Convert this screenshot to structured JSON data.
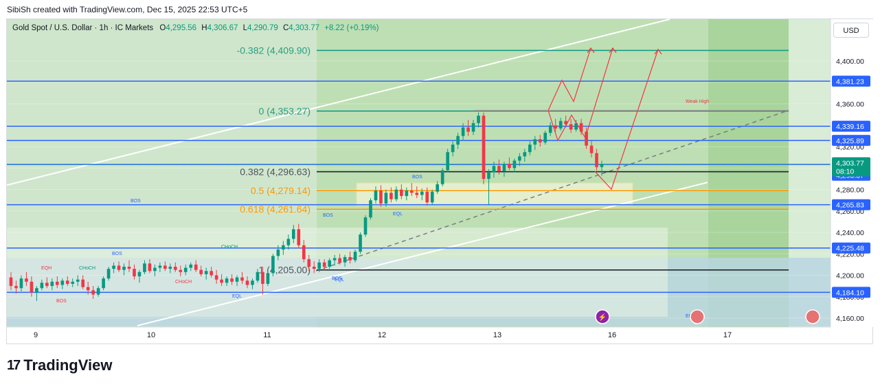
{
  "header": {
    "attribution": "SibiSh created with TradingView.com, Dec 15, 2025 22:53 UTC+5"
  },
  "legend": {
    "symbol": "Gold Spot / U.S. Dollar · 1h · IC Markets",
    "open_label": "O",
    "open": "4,295.56",
    "high_label": "H",
    "high": "4,306.67",
    "low_label": "L",
    "low": "4,290.79",
    "close_label": "C",
    "close": "4,303.77",
    "change": "+8.22 (+0.19%)"
  },
  "currency_button": "USD",
  "branding": {
    "logo_mark": "17",
    "name": "TradingView"
  },
  "colors": {
    "up": "#089981",
    "down": "#f23645",
    "blue_line": "#2962ff",
    "fib_green": "#26a69a",
    "fib_orange": "#ff9800",
    "projection": "#f23645"
  },
  "chart_data": {
    "type": "candlestick",
    "ylim": [
      4150,
      4425
    ],
    "y_ticks": [
      4160,
      4180,
      4200,
      4220,
      4240,
      4260,
      4280,
      4300,
      4320,
      4340,
      4360,
      4380,
      4400
    ],
    "y_tick_labels": [
      "4,160.00",
      "4,180.00",
      "4,200.00",
      "4,220.00",
      "4,240.00",
      "4,260.00",
      "4,280.00",
      "4,300.00",
      "4,320.00",
      "4,340.00",
      "4,360.00",
      "4,380.00",
      "4,400.00"
    ],
    "x_ticks": [
      9,
      10,
      11,
      12,
      13,
      16,
      17
    ],
    "x_tick_labels": [
      "9",
      "10",
      "11",
      "12",
      "13",
      "16",
      "17"
    ],
    "price_labels": [
      {
        "text": "4,381.23",
        "value": 4381.23
      },
      {
        "text": "4,339.16",
        "value": 4339.16
      },
      {
        "text": "4,325.89",
        "value": 4325.89
      },
      {
        "text": "4,303.55",
        "value": 4303.55
      },
      {
        "text": "4,293.37",
        "value": 4293.37
      },
      {
        "text": "4,265.83",
        "value": 4265.83
      },
      {
        "text": "4,225.48",
        "value": 4225.48
      },
      {
        "text": "4,184.10",
        "value": 4184.1
      }
    ],
    "last_price": {
      "text": "4,303.77",
      "countdown": "08:10",
      "value": 4303.77
    },
    "horizontal_levels": [
      4381.23,
      4339.16,
      4325.89,
      4303.55,
      4265.83,
      4225.48,
      4184.1
    ],
    "fib_levels": [
      {
        "label": "-0.382 (4,409.90)",
        "value": 4409.9
      },
      {
        "label": "0 (4,353.27)",
        "value": 4353.27
      },
      {
        "label": "0.382 (4,296.63)",
        "value": 4296.63
      },
      {
        "label": "0.5 (4,279.14)",
        "value": 4279.14
      },
      {
        "label": "0.618 (4,261.64)",
        "value": 4261.64
      }
    ],
    "fib_base_label": "1 (4,205.00)",
    "structure_labels": [
      "EQH",
      "CHoCH",
      "BOS",
      "BOS",
      "CHoCH",
      "BOS",
      "BOS",
      "CHoCH",
      "EQL",
      "BOS",
      "EQL",
      "BOS",
      "EQL",
      "EQL",
      "Weak High"
    ],
    "ohlc": [
      [
        4198,
        4203,
        4186,
        4190
      ],
      [
        4190,
        4195,
        4183,
        4188
      ],
      [
        4188,
        4200,
        4185,
        4197
      ],
      [
        4197,
        4203,
        4190,
        4194
      ],
      [
        4194,
        4199,
        4180,
        4184
      ],
      [
        4184,
        4190,
        4176,
        4188
      ],
      [
        4188,
        4196,
        4186,
        4193
      ],
      [
        4193,
        4198,
        4188,
        4190
      ],
      [
        4190,
        4197,
        4186,
        4194
      ],
      [
        4194,
        4199,
        4188,
        4191
      ],
      [
        4191,
        4197,
        4187,
        4195
      ],
      [
        4195,
        4199,
        4190,
        4192
      ],
      [
        4192,
        4197,
        4189,
        4194
      ],
      [
        4194,
        4200,
        4190,
        4196
      ],
      [
        4196,
        4200,
        4187,
        4189
      ],
      [
        4189,
        4194,
        4182,
        4186
      ],
      [
        4186,
        4190,
        4178,
        4182
      ],
      [
        4182,
        4190,
        4180,
        4188
      ],
      [
        4188,
        4199,
        4186,
        4197
      ],
      [
        4197,
        4208,
        4195,
        4206
      ],
      [
        4206,
        4212,
        4202,
        4209
      ],
      [
        4209,
        4213,
        4203,
        4205
      ],
      [
        4205,
        4211,
        4200,
        4208
      ],
      [
        4208,
        4214,
        4203,
        4206
      ],
      [
        4206,
        4210,
        4196,
        4199
      ],
      [
        4199,
        4205,
        4193,
        4203
      ],
      [
        4203,
        4214,
        4201,
        4211
      ],
      [
        4211,
        4215,
        4202,
        4204
      ],
      [
        4204,
        4210,
        4199,
        4207
      ],
      [
        4207,
        4212,
        4203,
        4209
      ],
      [
        4209,
        4213,
        4204,
        4206
      ],
      [
        4206,
        4211,
        4202,
        4208
      ],
      [
        4208,
        4212,
        4203,
        4205
      ],
      [
        4205,
        4209,
        4199,
        4203
      ],
      [
        4203,
        4210,
        4200,
        4207
      ],
      [
        4207,
        4212,
        4204,
        4210
      ],
      [
        4210,
        4214,
        4203,
        4205
      ],
      [
        4205,
        4209,
        4199,
        4201
      ],
      [
        4201,
        4207,
        4196,
        4204
      ],
      [
        4204,
        4208,
        4198,
        4200
      ],
      [
        4200,
        4205,
        4192,
        4196
      ],
      [
        4196,
        4201,
        4190,
        4193
      ],
      [
        4193,
        4199,
        4190,
        4197
      ],
      [
        4197,
        4201,
        4191,
        4194
      ],
      [
        4194,
        4200,
        4190,
        4198
      ],
      [
        4198,
        4203,
        4192,
        4195
      ],
      [
        4195,
        4199,
        4188,
        4191
      ],
      [
        4191,
        4197,
        4187,
        4195
      ],
      [
        4195,
        4206,
        4193,
        4203
      ],
      [
        4203,
        4208,
        4182,
        4192
      ],
      [
        4192,
        4205,
        4190,
        4202
      ],
      [
        4202,
        4220,
        4199,
        4218
      ],
      [
        4218,
        4228,
        4214,
        4224
      ],
      [
        4224,
        4232,
        4219,
        4228
      ],
      [
        4228,
        4238,
        4224,
        4234
      ],
      [
        4234,
        4247,
        4230,
        4243
      ],
      [
        4243,
        4248,
        4225,
        4228
      ],
      [
        4228,
        4233,
        4212,
        4215
      ],
      [
        4215,
        4219,
        4204,
        4208
      ],
      [
        4208,
        4213,
        4202,
        4206
      ],
      [
        4206,
        4215,
        4203,
        4212
      ],
      [
        4212,
        4215,
        4205,
        4208
      ],
      [
        4208,
        4216,
        4206,
        4214
      ],
      [
        4214,
        4219,
        4209,
        4216
      ],
      [
        4216,
        4220,
        4210,
        4212
      ],
      [
        4212,
        4219,
        4208,
        4217
      ],
      [
        4217,
        4222,
        4211,
        4214
      ],
      [
        4214,
        4224,
        4212,
        4222
      ],
      [
        4222,
        4240,
        4220,
        4238
      ],
      [
        4238,
        4256,
        4236,
        4254
      ],
      [
        4254,
        4272,
        4252,
        4270
      ],
      [
        4270,
        4283,
        4267,
        4279
      ],
      [
        4279,
        4284,
        4264,
        4267
      ],
      [
        4267,
        4280,
        4264,
        4277
      ],
      [
        4277,
        4282,
        4268,
        4271
      ],
      [
        4271,
        4283,
        4269,
        4280
      ],
      [
        4280,
        4285,
        4271,
        4274
      ],
      [
        4274,
        4282,
        4270,
        4279
      ],
      [
        4279,
        4286,
        4274,
        4277
      ],
      [
        4277,
        4283,
        4272,
        4275
      ],
      [
        4275,
        4281,
        4270,
        4278
      ],
      [
        4278,
        4282,
        4265,
        4268
      ],
      [
        4268,
        4280,
        4266,
        4278
      ],
      [
        4278,
        4288,
        4276,
        4285
      ],
      [
        4285,
        4300,
        4283,
        4298
      ],
      [
        4298,
        4318,
        4296,
        4315
      ],
      [
        4315,
        4325,
        4311,
        4322
      ],
      [
        4322,
        4333,
        4318,
        4330
      ],
      [
        4330,
        4342,
        4326,
        4338
      ],
      [
        4338,
        4345,
        4330,
        4334
      ],
      [
        4334,
        4345,
        4331,
        4342
      ],
      [
        4342,
        4352,
        4338,
        4349
      ],
      [
        4349,
        4352,
        4285,
        4290
      ],
      [
        4290,
        4299,
        4266,
        4296
      ],
      [
        4296,
        4306,
        4291,
        4302
      ],
      [
        4302,
        4308,
        4294,
        4297
      ],
      [
        4297,
        4306,
        4292,
        4304
      ],
      [
        4304,
        4310,
        4298,
        4300
      ],
      [
        4300,
        4309,
        4296,
        4307
      ],
      [
        4307,
        4314,
        4302,
        4311
      ],
      [
        4311,
        4318,
        4306,
        4315
      ],
      [
        4315,
        4325,
        4312,
        4322
      ],
      [
        4322,
        4330,
        4317,
        4327
      ],
      [
        4327,
        4331,
        4320,
        4324
      ],
      [
        4324,
        4335,
        4322,
        4333
      ],
      [
        4333,
        4343,
        4330,
        4340
      ],
      [
        4340,
        4346,
        4334,
        4337
      ],
      [
        4337,
        4347,
        4335,
        4344
      ],
      [
        4344,
        4349,
        4338,
        4341
      ],
      [
        4341,
        4346,
        4333,
        4336
      ],
      [
        4336,
        4345,
        4334,
        4342
      ],
      [
        4342,
        4346,
        4331,
        4334
      ],
      [
        4334,
        4338,
        4318,
        4321
      ],
      [
        4321,
        4326,
        4310,
        4314
      ],
      [
        4314,
        4318,
        4298,
        4301
      ],
      [
        4301,
        4307,
        4293,
        4304
      ]
    ],
    "projection_path": [
      [
        4352,
        4363,
        4348,
        4370,
        4335,
        4356,
        4407,
        4300,
        4305,
        4407
      ],
      [
        4352,
        4368,
        4340,
        4356,
        4290,
        4408
      ]
    ]
  }
}
